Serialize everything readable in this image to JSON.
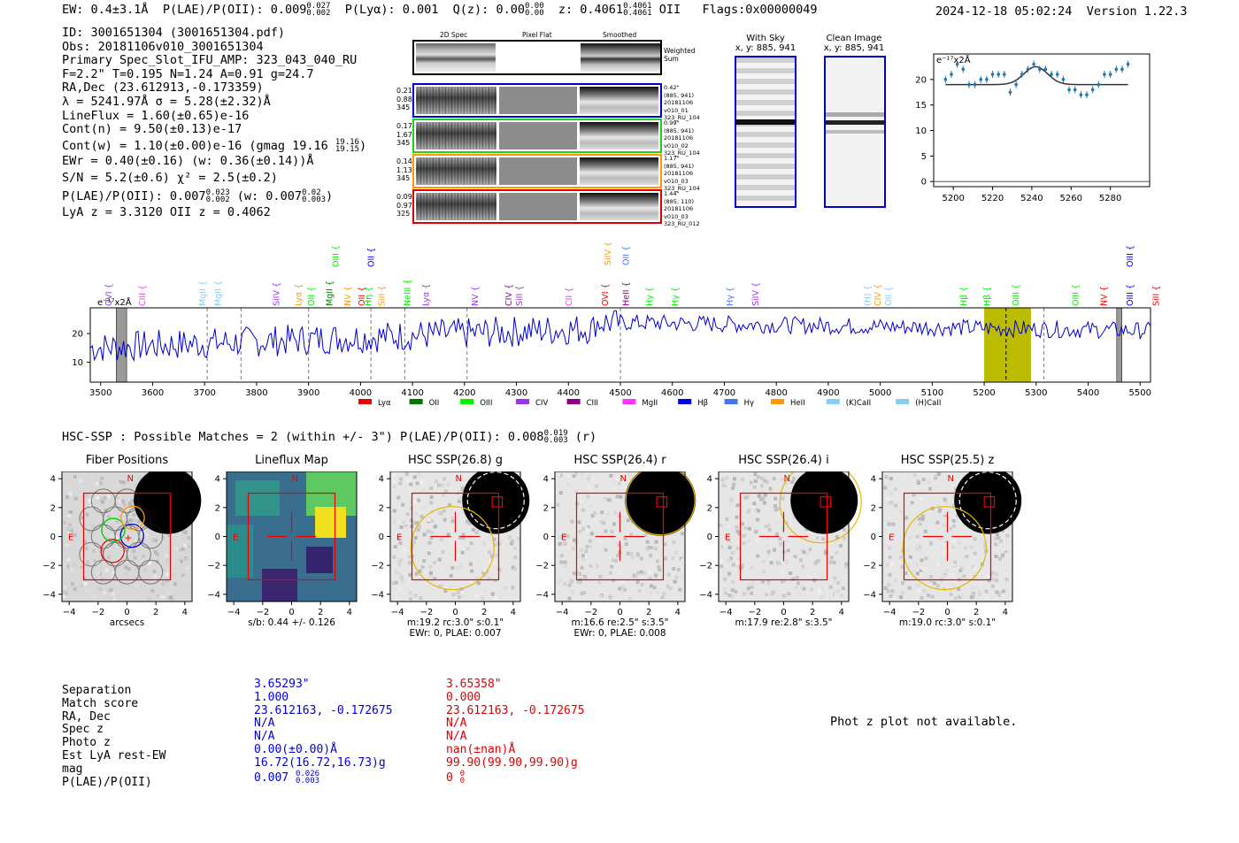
{
  "header": {
    "ew": "EW: 0.4±3.1Å",
    "plae": "P(LAE)/P(OII): 0.009",
    "plae_hi": "0.027",
    "plae_lo": "0.002",
    "plya": "P(Lyα): 0.001",
    "qz": "Q(z): 0.00",
    "qz_hi": "0.00",
    "qz_lo": "0.00",
    "z": "z: 0.4061",
    "z_hi": "0.4061",
    "z_lo": "0.4061",
    "line": "OII",
    "flags": "Flags:0x00000049",
    "datetime": "2024-12-18 05:02:24",
    "version": "Version 1.22.3"
  },
  "info": {
    "id": "ID: 3001651304 (3001651304.pdf)",
    "obs": "Obs: 20181106v010_3001651304",
    "primary": "Primary Spec_Slot_IFU_AMP: 323_043_040_RU",
    "params": "F=2.2\"  T=0.195  N=1.24  A=0.91  g=24.7",
    "radec": "RA,Dec (23.612913,-0.173359)",
    "lambda": "λ = 5241.97Å  σ = 5.28(±2.32)Å",
    "lineflux": "LineFlux = 1.60(±0.65)e-16",
    "contn": "Cont(n) = 9.50(±0.13)e-17",
    "contw": "Cont(w) = 1.10(±0.00)e-16 (gmag 19.16",
    "contw_hi": "19.16",
    "contw_lo": "19.15",
    "ewr": "EWr = 0.40(±0.16) (w: 0.36(±0.14))Å",
    "sn": "S/N = 5.2(±0.6)  χ² = 2.5(±0.2)",
    "plae": "P(LAE)/P(OII): 0.007",
    "plae_hi": "0.023",
    "plae_lo": "0.002",
    "plae_w": "(w: 0.007",
    "plae_w_hi": "0.02",
    "plae_w_lo": "0.003",
    "lyaz": "LyA z = 3.3120  OII z = 0.4062"
  },
  "spectra_panel": {
    "col_2d": "2D Spec",
    "col_flat": "Pixel Flat",
    "col_smooth": "Smoothed",
    "weighted": "Weighted Sum",
    "rows": [
      {
        "v1": "0.21",
        "v2": "0.88",
        "v3": "345",
        "color": "#0000cc",
        "n1": "0.42\"",
        "n2": "(885, 941)",
        "n3": "20181106",
        "n4": "v010_01",
        "n5": "323_RU_104"
      },
      {
        "v1": "0.17",
        "v2": "1.67",
        "v3": "345",
        "color": "#22cc22",
        "n1": "0.99\"",
        "n2": "(885, 941)",
        "n3": "20181106",
        "n4": "v010_02",
        "n5": "323_RU_104"
      },
      {
        "v1": "0.14",
        "v2": "1.13",
        "v3": "345",
        "color": "#ff9900",
        "n1": "1.17\"",
        "n2": "(885, 941)",
        "n3": "20181106",
        "n4": "v010_03",
        "n5": "323_RU_104"
      },
      {
        "v1": "0.09",
        "v2": "0.97",
        "v3": "325",
        "color": "#dd0000",
        "n1": "1.44\"",
        "n2": "(885, 110)",
        "n3": "20181106",
        "n4": "v010_03",
        "n5": "323_RU_012"
      }
    ]
  },
  "sky": {
    "with_sky": "With Sky",
    "clean": "Clean Image",
    "xy": "x, y: 885, 941"
  },
  "zoom_chart": {
    "unit": "e⁻¹⁷x2Å",
    "yticks": [
      "0",
      "5",
      "10",
      "15",
      "20"
    ],
    "xticks": [
      "5200",
      "5220",
      "5240",
      "5260",
      "5280"
    ]
  },
  "chart_data": [
    {
      "type": "scatter",
      "title": "",
      "ylabel": "e⁻¹⁷x2Å",
      "xlim": [
        5190,
        5300
      ],
      "ylim": [
        -1,
        25
      ],
      "x": [
        5196,
        5199,
        5202,
        5205,
        5208,
        5211,
        5214,
        5217,
        5220,
        5223,
        5226,
        5229,
        5232,
        5235,
        5238,
        5241,
        5244,
        5247,
        5250,
        5253,
        5256,
        5259,
        5262,
        5265,
        5268,
        5271,
        5274,
        5277,
        5280,
        5283,
        5286,
        5289
      ],
      "y": [
        20,
        21,
        23,
        22,
        19,
        19,
        20,
        20,
        21,
        21,
        21,
        17.5,
        19,
        21,
        22,
        23,
        22,
        22,
        21,
        21,
        20,
        18,
        18,
        17,
        17,
        18,
        19,
        21,
        21,
        22,
        22,
        23
      ],
      "fit_baseline": 19,
      "fit_center": 5242,
      "fit_amplitude": 3.5,
      "fit_sigma": 6
    },
    {
      "type": "line",
      "title": "",
      "ylabel": "e⁻¹⁷x2Å",
      "xlim": [
        3480,
        5520
      ],
      "ylim": [
        3,
        29
      ],
      "xticks": [
        3500,
        3600,
        3700,
        3800,
        3900,
        4000,
        4100,
        4200,
        4300,
        4400,
        4500,
        4600,
        4700,
        4800,
        4900,
        5000,
        5100,
        5200,
        5300,
        5400,
        5500
      ],
      "yticks": [
        10,
        20
      ],
      "highlight_band": [
        5200,
        5290
      ],
      "line_center": 5242,
      "masked": [
        [
          3530,
          3550
        ],
        [
          5455,
          5465
        ]
      ],
      "dashed_lines": [
        3705,
        3770,
        3900,
        4020,
        4085,
        4205,
        4500,
        5315
      ]
    }
  ],
  "spectrum": {
    "unit": "e⁻¹⁷x2Å",
    "legend": [
      {
        "label": "Lyα",
        "color": "#ee0000"
      },
      {
        "label": "OII",
        "color": "#007700"
      },
      {
        "label": "OIII",
        "color": "#00ee00"
      },
      {
        "label": "CIV",
        "color": "#9933ee"
      },
      {
        "label": "CIII",
        "color": "#880088"
      },
      {
        "label": "MgII",
        "color": "#ff33ff"
      },
      {
        "label": "Hβ",
        "color": "#0000ee"
      },
      {
        "label": "Hγ",
        "color": "#4477ee"
      },
      {
        "label": "HeII",
        "color": "#ff9900"
      },
      {
        "label": "(K)CaII",
        "color": "#88ccee"
      },
      {
        "label": "(H)CaII",
        "color": "#88ccee"
      }
    ],
    "lines": [
      {
        "x": 3515,
        "label": "OVI",
        "color": "#9933ee",
        "row": 0
      },
      {
        "x": 3580,
        "label": "CIII",
        "color": "#ff33ff",
        "row": 0
      },
      {
        "x": 3695,
        "label": "MgII",
        "color": "#88ccee",
        "row": 0
      },
      {
        "x": 3725,
        "label": "MgII",
        "color": "#88ccee",
        "row": 0
      },
      {
        "x": 3838,
        "label": "SiIV",
        "color": "#9933ee",
        "row": 0
      },
      {
        "x": 3880,
        "label": "Lyα",
        "color": "#ff9900",
        "row": 0
      },
      {
        "x": 3905,
        "label": "OII",
        "color": "#00ee00",
        "row": 0
      },
      {
        "x": 3940,
        "label": "MgII",
        "color": "#007700",
        "row": 0
      },
      {
        "x": 3952,
        "label": "OIII",
        "color": "#00ee00",
        "row": 2
      },
      {
        "x": 3975,
        "label": "NV",
        "color": "#ff9900",
        "row": 0
      },
      {
        "x": 4002,
        "label": "OII",
        "color": "#ee0000",
        "row": 0
      },
      {
        "x": 4020,
        "label": "OII",
        "color": "#0000ee",
        "row": 2
      },
      {
        "x": 4015,
        "label": "Hη",
        "color": "#00ee00",
        "row": 0
      },
      {
        "x": 4040,
        "label": "SiII",
        "color": "#ff9900",
        "row": 0
      },
      {
        "x": 4090,
        "label": "NeIII",
        "color": "#00ee00",
        "row": 0
      },
      {
        "x": 4125,
        "label": "Lyα",
        "color": "#9933ee",
        "row": 0
      },
      {
        "x": 4220,
        "label": "NV",
        "color": "#9933ee",
        "row": 0
      },
      {
        "x": 4285,
        "label": "CIV",
        "color": "#880088",
        "row": 0
      },
      {
        "x": 4305,
        "label": "SiII",
        "color": "#9933ee",
        "row": 0
      },
      {
        "x": 4400,
        "label": "CII",
        "color": "#ff33ff",
        "row": 0
      },
      {
        "x": 4470,
        "label": "OVI",
        "color": "#ee0000",
        "row": 0
      },
      {
        "x": 4475,
        "label": "SiIV",
        "color": "#ff9900",
        "row": 1
      },
      {
        "x": 4510,
        "label": "HeII",
        "color": "#880088",
        "row": 0
      },
      {
        "x": 4510,
        "label": "OII",
        "color": "#4477ee",
        "row": 1
      },
      {
        "x": 4555,
        "label": "Hγ",
        "color": "#00ee00",
        "row": 0
      },
      {
        "x": 4605,
        "label": "Hγ",
        "color": "#00ee00",
        "row": 0
      },
      {
        "x": 4710,
        "label": "Hγ",
        "color": "#4477ee",
        "row": 0
      },
      {
        "x": 4760,
        "label": "SiIV",
        "color": "#9933ee",
        "row": 0
      },
      {
        "x": 4975,
        "label": "(H)",
        "color": "#88ccee",
        "row": 0
      },
      {
        "x": 4995,
        "label": "CIV",
        "color": "#ff9900",
        "row": 0
      },
      {
        "x": 5015,
        "label": "OII",
        "color": "#88ccee",
        "row": 0
      },
      {
        "x": 5160,
        "label": "Hβ",
        "color": "#00ee00",
        "row": 0
      },
      {
        "x": 5205,
        "label": "Hβ",
        "color": "#00ee00",
        "row": 0
      },
      {
        "x": 5260,
        "label": "OIII",
        "color": "#00ee00",
        "row": 0
      },
      {
        "x": 5375,
        "label": "OIII",
        "color": "#00ee00",
        "row": 0
      },
      {
        "x": 5430,
        "label": "NV",
        "color": "#ee0000",
        "row": 0
      },
      {
        "x": 5480,
        "label": "OIII",
        "color": "#0000ee",
        "row": 0
      },
      {
        "x": 5480,
        "label": "OIII",
        "color": "#0000ee",
        "row": 2
      },
      {
        "x": 5530,
        "label": "SiII",
        "color": "#ee0000",
        "row": 0
      }
    ]
  },
  "hsc": {
    "heading": "HSC-SSP : Possible Matches = 2 (within +/- 3\")  P(LAE)/P(OII): 0.008",
    "plae_hi": "0.019",
    "plae_lo": "0.003",
    "band": "(r)",
    "axis_ticks": [
      "4",
      "2",
      "0",
      "−2",
      "−4"
    ],
    "x_ticks": [
      "−4",
      "−2",
      "0",
      "2",
      "4"
    ],
    "compass_n": "N",
    "compass_e": "E",
    "panels": [
      {
        "title": "Fiber Positions",
        "cap1": "arcsecs",
        "cap2": ""
      },
      {
        "title": "Lineflux Map",
        "cap1": "s/b: 0.44 +/- 0.126",
        "cap2": ""
      },
      {
        "title": "HSC SSP(26.8) g",
        "cap1": "m:19.2 rc:3.0\"  s:0.1\"",
        "cap2": "EWr: 0, PLAE: 0.007"
      },
      {
        "title": "HSC SSP(26.4) r",
        "cap1": "m:16.6  re:2.5\"  s:3.5\"",
        "cap2": "EWr: 0, PLAE: 0.008"
      },
      {
        "title": "HSC SSP(26.4) i",
        "cap1": "m:17.9  re:2.8\"  s:3.5\"",
        "cap2": ""
      },
      {
        "title": "HSC SSP(25.5) z",
        "cap1": "m:19.0 rc:3.0\"  s:0.1\"",
        "cap2": ""
      }
    ]
  },
  "table": {
    "labels": [
      "Separation",
      "Match score",
      "RA, Dec",
      "Spec z",
      "Photo z",
      "Est LyA rest-EW",
      "mag",
      "P(LAE)/P(OII)"
    ],
    "col1": [
      "3.65293\"",
      "1.000",
      "23.612163, -0.172675",
      "N/A",
      "N/A",
      "0.00(±0.00)Å",
      "16.72(16.72,16.73)g",
      "0.007"
    ],
    "col1_plae_hi": "0.026",
    "col1_plae_lo": "0.003",
    "col2": [
      "3.65358\"",
      "0.000",
      "23.612163, -0.172675",
      "N/A",
      "N/A",
      "nan(±nan)Å",
      "99.90(99.90,99.90)g",
      "0"
    ],
    "col2_plae_hi": "0",
    "col2_plae_lo": "0"
  },
  "phot_z": "Phot z plot not available."
}
